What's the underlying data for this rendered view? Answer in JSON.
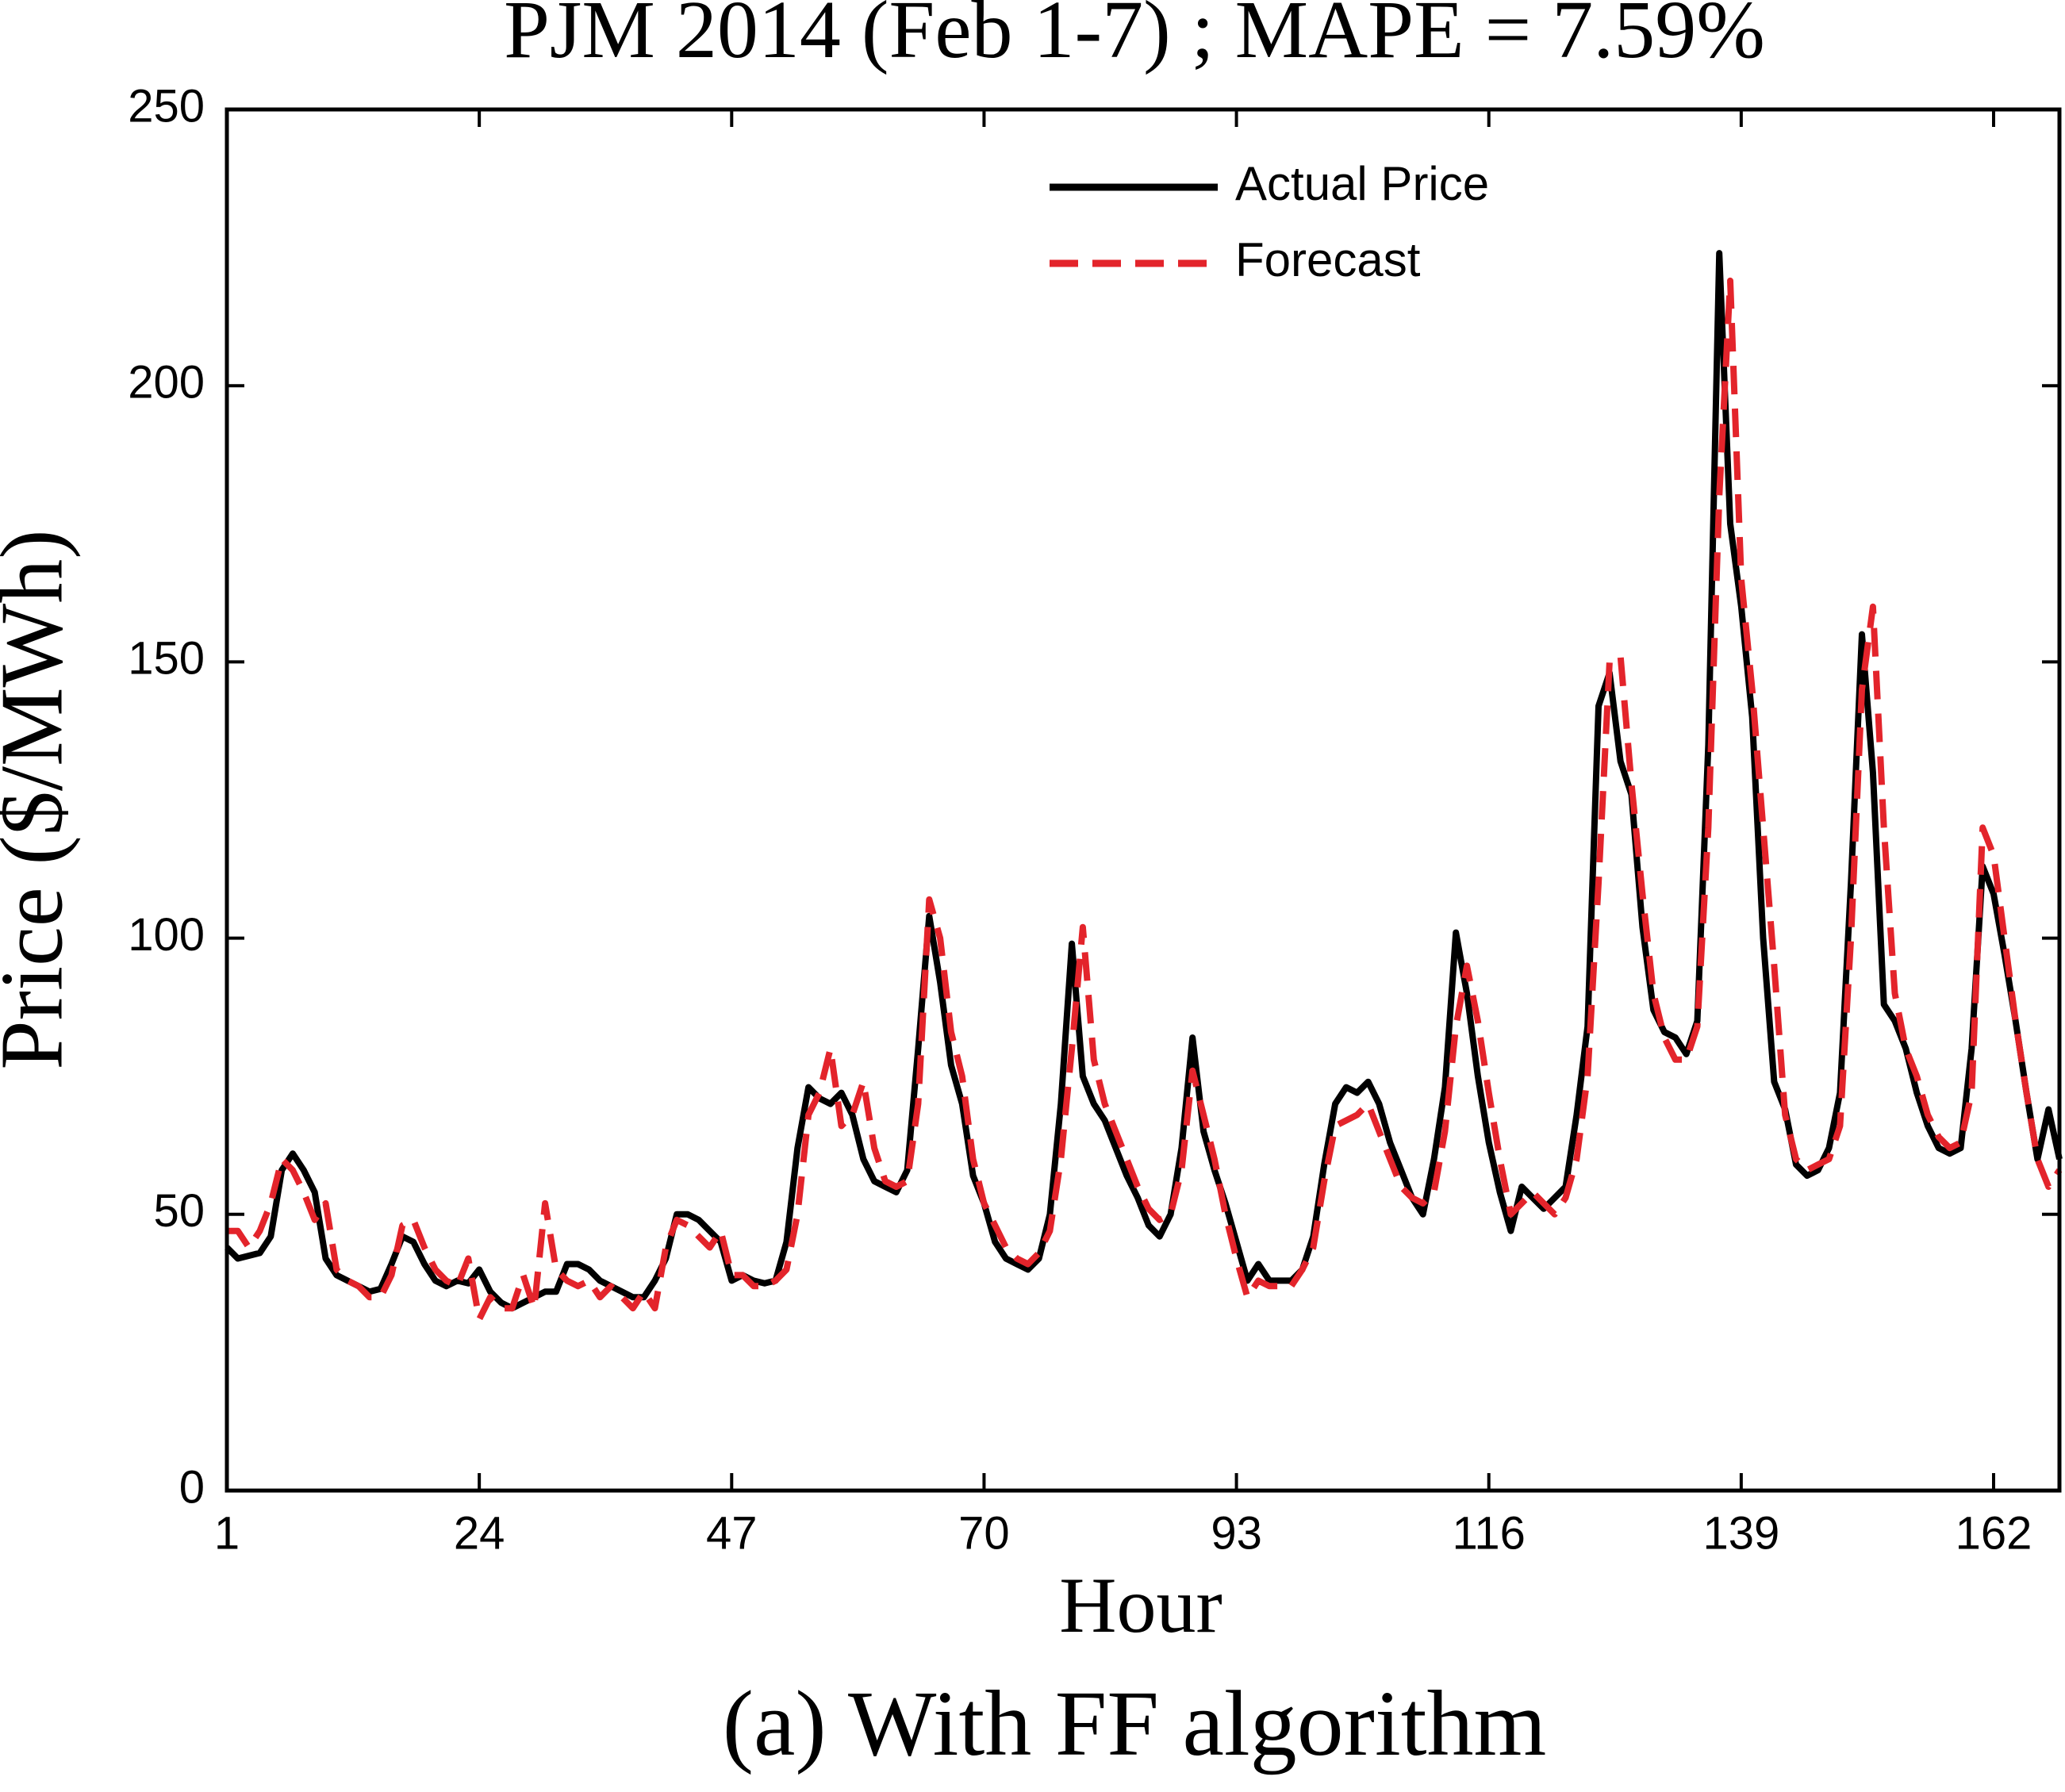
{
  "chart_data": {
    "type": "line",
    "title": "PJM 2014 (Feb 1-7) ; MAPE = 7.59%",
    "caption": "(a)  With FF algorithm",
    "x_label": "Hour",
    "y_label": "Price ($/MWh)",
    "xlim": [
      1,
      168
    ],
    "xticks": [
      1,
      24,
      47,
      70,
      93,
      116,
      139,
      162
    ],
    "ylim": [
      0,
      250
    ],
    "yticks": [
      0,
      50,
      100,
      150,
      200,
      250
    ],
    "legend": "upper center",
    "x": [
      1,
      2,
      3,
      4,
      5,
      6,
      7,
      8,
      9,
      10,
      11,
      12,
      13,
      14,
      15,
      16,
      17,
      18,
      19,
      20,
      21,
      22,
      23,
      24,
      25,
      26,
      27,
      28,
      29,
      30,
      31,
      32,
      33,
      34,
      35,
      36,
      37,
      38,
      39,
      40,
      41,
      42,
      43,
      44,
      45,
      46,
      47,
      48,
      49,
      50,
      51,
      52,
      53,
      54,
      55,
      56,
      57,
      58,
      59,
      60,
      61,
      62,
      63,
      64,
      65,
      66,
      67,
      68,
      69,
      70,
      71,
      72,
      73,
      74,
      75,
      76,
      77,
      78,
      79,
      80,
      81,
      82,
      83,
      84,
      85,
      86,
      87,
      88,
      89,
      90,
      91,
      92,
      93,
      94,
      95,
      96,
      97,
      98,
      99,
      100,
      101,
      102,
      103,
      104,
      105,
      106,
      107,
      108,
      109,
      110,
      111,
      112,
      113,
      114,
      115,
      116,
      117,
      118,
      119,
      120,
      121,
      122,
      123,
      124,
      125,
      126,
      127,
      128,
      129,
      130,
      131,
      132,
      133,
      134,
      135,
      136,
      137,
      138,
      139,
      140,
      141,
      142,
      143,
      144,
      145,
      146,
      147,
      148,
      149,
      150,
      151,
      152,
      153,
      154,
      155,
      156,
      157,
      158,
      159,
      160,
      161,
      162,
      163,
      164,
      165,
      166,
      167,
      168
    ],
    "series": [
      {
        "name": "Actual Price",
        "color": "#000000",
        "dash": false,
        "values": [
          44,
          42,
          42.5,
          43,
          46,
          58,
          61,
          58,
          54,
          42,
          39,
          38,
          37,
          36,
          36.5,
          41,
          46,
          45,
          41,
          38,
          37,
          38,
          37.5,
          40,
          36,
          34,
          33,
          34,
          35,
          36,
          36,
          41,
          41,
          40,
          38,
          37,
          36,
          35,
          35,
          38,
          42,
          50,
          50,
          49,
          47,
          45,
          38,
          39,
          38,
          37.5,
          38,
          45,
          62,
          73,
          71,
          70,
          72,
          68,
          60,
          56,
          55,
          54,
          58,
          80,
          104,
          92,
          77,
          70,
          57,
          52,
          45,
          42,
          41,
          40,
          42,
          50,
          70,
          99,
          75,
          70,
          67,
          62,
          57,
          53,
          48,
          46,
          50,
          62,
          82,
          65,
          58,
          52,
          45,
          38,
          41,
          38,
          38,
          38,
          40,
          46,
          59,
          70,
          73,
          72,
          74,
          70,
          63,
          58,
          53,
          50,
          60,
          73,
          101,
          90,
          75,
          63,
          54,
          47,
          55,
          53,
          51,
          53,
          55,
          68,
          84,
          142,
          148,
          132,
          126,
          102,
          87,
          83,
          82,
          79,
          85,
          135,
          224,
          175,
          160,
          140,
          100,
          74,
          69,
          59,
          57,
          58,
          62,
          72,
          110,
          155,
          130,
          88,
          85,
          80,
          72,
          66,
          62,
          61,
          62,
          80,
          113,
          108,
          97,
          85,
          72,
          60,
          69,
          60
        ]
      },
      {
        "name": "Forecast",
        "color": "#e3242b",
        "dash": true,
        "values": [
          47,
          47,
          44,
          47,
          52,
          60,
          58,
          54,
          49,
          52,
          40,
          38,
          37,
          35,
          35,
          39,
          48,
          49,
          44,
          40,
          38,
          37,
          42,
          31,
          35,
          33,
          33,
          39,
          33,
          52,
          40,
          38,
          37,
          38,
          35,
          37,
          35,
          33,
          36,
          33,
          44,
          49,
          48,
          46,
          44,
          47,
          39,
          39,
          37,
          37,
          38,
          40,
          50,
          68,
          72,
          80,
          66,
          68,
          74,
          62,
          56,
          55,
          56,
          70,
          107,
          100,
          83,
          75,
          60,
          52,
          48,
          44,
          42,
          41,
          43,
          47,
          60,
          80,
          102,
          78,
          70,
          65,
          60,
          55,
          51,
          49,
          50,
          58,
          76,
          68,
          60,
          50,
          42,
          35,
          38,
          37,
          37,
          37,
          40,
          44,
          56,
          66,
          67,
          68,
          70,
          65,
          60,
          55,
          53,
          52,
          54,
          65,
          84,
          95,
          85,
          72,
          60,
          50,
          52,
          54,
          52,
          50,
          53,
          60,
          75,
          110,
          150,
          151,
          128,
          108,
          90,
          82,
          78,
          78,
          84,
          120,
          180,
          219,
          165,
          145,
          120,
          95,
          68,
          60,
          58,
          59,
          60,
          66,
          100,
          145,
          160,
          120,
          90,
          80,
          75,
          68,
          64,
          62,
          63,
          72,
          120,
          115,
          100,
          85,
          72,
          60,
          55,
          58
        ]
      }
    ]
  }
}
